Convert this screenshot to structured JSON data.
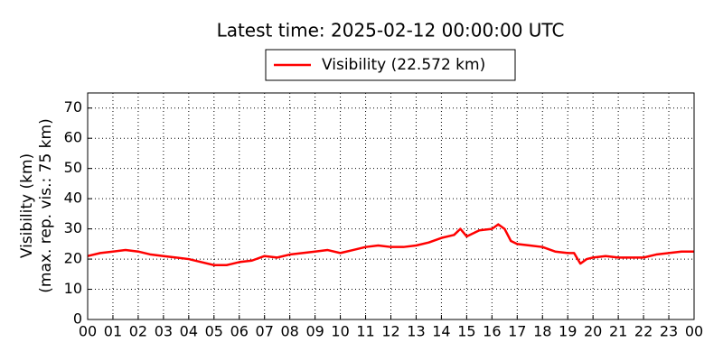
{
  "chart_data": {
    "type": "line",
    "title": "Latest time: 2025-02-12 00:00:00 UTC",
    "y_label": [
      "Visibility (km)",
      "(max. rep. vis.: 75 km)"
    ],
    "series": [
      {
        "name": "Visibility (22.572 km)",
        "color": "#ff0000",
        "x": [
          0,
          0.5,
          1,
          1.5,
          2,
          2.5,
          3,
          3.5,
          4,
          4.5,
          5,
          5.5,
          6,
          6.5,
          7,
          7.5,
          8,
          8.5,
          9,
          9.5,
          10,
          10.5,
          11,
          11.5,
          12,
          12.5,
          13,
          13.5,
          14,
          14.5,
          14.75,
          15,
          15.5,
          16,
          16.25,
          16.5,
          16.75,
          17,
          17.5,
          18,
          18.5,
          19,
          19.25,
          19.5,
          19.75,
          20,
          20.5,
          21,
          21.5,
          22,
          22.5,
          23,
          23.5,
          24
        ],
        "values": [
          21,
          22,
          22.5,
          23,
          22.5,
          21.5,
          21,
          20.5,
          20,
          19,
          18,
          18,
          19,
          19.5,
          21,
          20.5,
          21.5,
          22,
          22.5,
          23,
          22,
          23,
          24,
          24.5,
          24,
          24,
          24.5,
          25.5,
          27,
          28,
          30,
          27.5,
          29.5,
          30,
          31.5,
          30,
          26,
          25,
          24.5,
          24,
          22.5,
          22,
          22,
          18.5,
          20,
          20.5,
          21,
          20.5,
          20.5,
          20.5,
          21.5,
          22,
          22.5,
          22.5
        ]
      }
    ],
    "xlim": [
      0,
      24
    ],
    "xticks": [
      {
        "value": 0,
        "label": "00"
      },
      {
        "value": 1,
        "label": "01"
      },
      {
        "value": 2,
        "label": "02"
      },
      {
        "value": 3,
        "label": "03"
      },
      {
        "value": 4,
        "label": "04"
      },
      {
        "value": 5,
        "label": "05"
      },
      {
        "value": 6,
        "label": "06"
      },
      {
        "value": 7,
        "label": "07"
      },
      {
        "value": 8,
        "label": "08"
      },
      {
        "value": 9,
        "label": "09"
      },
      10,
      11,
      12,
      13,
      14,
      15,
      16,
      17,
      18,
      19,
      20,
      21,
      22,
      23,
      {
        "value": 24,
        "label": "00"
      }
    ],
    "ylim": [
      0,
      75
    ],
    "yticks": [
      0,
      10,
      20,
      30,
      40,
      50,
      60,
      70
    ],
    "grid": true
  }
}
